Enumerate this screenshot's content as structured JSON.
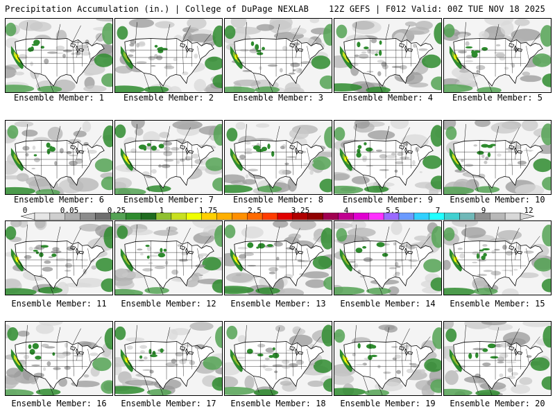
{
  "header": {
    "title": "Precipitation Accumulation (in.) | College of DuPage NEXLAB",
    "run_info": "12Z GEFS | F012 Valid: 00Z TUE NOV 18 2025"
  },
  "panels": [
    {
      "caption": "Ensemble Member: 1"
    },
    {
      "caption": "Ensemble Member: 2"
    },
    {
      "caption": "Ensemble Member: 3"
    },
    {
      "caption": "Ensemble Member: 4"
    },
    {
      "caption": "Ensemble Member: 5"
    },
    {
      "caption": "Ensemble Member: 6"
    },
    {
      "caption": "Ensemble Member: 7"
    },
    {
      "caption": "Ensemble Member: 8"
    },
    {
      "caption": "Ensemble Member: 9"
    },
    {
      "caption": "Ensemble Member: 10"
    },
    {
      "caption": "Ensemble Member: 11"
    },
    {
      "caption": "Ensemble Member: 12"
    },
    {
      "caption": "Ensemble Member: 13"
    },
    {
      "caption": "Ensemble Member: 14"
    },
    {
      "caption": "Ensemble Member: 15"
    },
    {
      "caption": "Ensemble Member: 16"
    },
    {
      "caption": "Ensemble Member: 17"
    },
    {
      "caption": "Ensemble Member: 18"
    },
    {
      "caption": "Ensemble Member: 19"
    },
    {
      "caption": "Ensemble Member: 20"
    }
  ],
  "colorbar": {
    "labels": [
      "0",
      "0.05",
      "0.25",
      "1",
      "1.75",
      "2.5",
      "3.25",
      "4",
      "5.5",
      "7",
      "9",
      "12"
    ],
    "colors": [
      "#e6e6e6",
      "#cfcfcf",
      "#b0b0b0",
      "#8c8c8c",
      "#6e6e6e",
      "#54a254",
      "#2e8b2e",
      "#1f6b1f",
      "#90c030",
      "#c8e020",
      "#f0ff00",
      "#ffd000",
      "#ffb000",
      "#ff9000",
      "#ff6a00",
      "#ff3c00",
      "#e00000",
      "#b00000",
      "#900000",
      "#a00050",
      "#c00090",
      "#e000d0",
      "#ff30ff",
      "#9a6aff",
      "#6a9aff",
      "#30d0ff",
      "#20ffff",
      "#40d0d0",
      "#70b8b8",
      "#909090",
      "#b8b8b8",
      "#d8d8d8"
    ]
  }
}
